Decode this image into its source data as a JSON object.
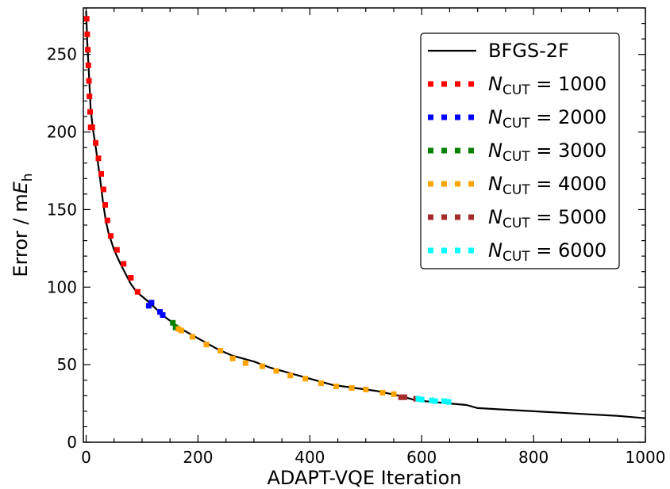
{
  "chart_data": {
    "type": "line",
    "xlabel": "ADAPT-VQE Iteration",
    "ylabel_text": "Error / m",
    "ylabel_math": "E",
    "ylabel_sub": "h",
    "xlim": [
      -5,
      1000
    ],
    "ylim": [
      0,
      280
    ],
    "xticks": [
      "0",
      "200",
      "400",
      "600",
      "800",
      "1000"
    ],
    "yticks": [
      "0",
      "50",
      "100",
      "150",
      "200",
      "250"
    ],
    "grid": false,
    "legend_position": "top-right",
    "reference": {
      "name": "BFGS-2F",
      "color": "#000000",
      "x": [
        0,
        2,
        5,
        8,
        12,
        16,
        20,
        25,
        30,
        35,
        40,
        50,
        60,
        70,
        80,
        90,
        100,
        110,
        125,
        140,
        155,
        170,
        190,
        210,
        235,
        260,
        280,
        300,
        330,
        360,
        400,
        440,
        480,
        520,
        560,
        590,
        620,
        650,
        680,
        700,
        750,
        800,
        850,
        900,
        950,
        1000
      ],
      "y": [
        278,
        258,
        238,
        215,
        202,
        193,
        183,
        170,
        155,
        143,
        135,
        124,
        116,
        109,
        102,
        97,
        94,
        91,
        86,
        81,
        77,
        73,
        69,
        65,
        60,
        56,
        54,
        52,
        48,
        45,
        41,
        37,
        35,
        33,
        30,
        27,
        26,
        25,
        24,
        22,
        21,
        20,
        19,
        18,
        17,
        15.5
      ]
    },
    "series": [
      {
        "name": "1000",
        "color": "#ff0000",
        "x": [
          1,
          2,
          3,
          4,
          5,
          6,
          7,
          8,
          11,
          17,
          22,
          27,
          31,
          34,
          38,
          44,
          55,
          67,
          80,
          92
        ],
        "y": [
          273,
          263,
          253,
          243,
          233,
          223,
          213,
          203,
          203,
          193,
          183,
          173,
          163,
          153,
          143,
          133,
          124,
          115,
          106,
          97
        ]
      },
      {
        "name": "2000",
        "color": "#0000ff",
        "x": [
          112,
          117,
          132,
          137
        ],
        "y": [
          88,
          90,
          84,
          82
        ]
      },
      {
        "name": "3000",
        "color": "#008000",
        "x": [
          155,
          160
        ],
        "y": [
          77,
          74
        ]
      },
      {
        "name": "4000",
        "color": "#ffa500",
        "x": [
          165,
          170,
          190,
          215,
          240,
          262,
          285,
          315,
          340,
          365,
          392,
          420,
          447,
          475,
          500,
          530,
          550
        ],
        "y": [
          73,
          72,
          68,
          63,
          59,
          54,
          51,
          49,
          46,
          43,
          41,
          38,
          36,
          35,
          34,
          32,
          31
        ]
      },
      {
        "name": "5000",
        "color": "#a52a2a",
        "x": [
          563,
          569,
          590
        ],
        "y": [
          29,
          29,
          28
        ]
      },
      {
        "name": "6000",
        "color": "#00ffff",
        "x": [
          594,
          600,
          618,
          624,
          640,
          648
        ],
        "y": [
          28,
          27.5,
          27,
          26.5,
          26.5,
          26
        ]
      }
    ],
    "legend": {
      "reference_label": "BFGS-2F",
      "ncut_symbol": "N",
      "ncut_sub": "CUT",
      "equals": "="
    }
  }
}
